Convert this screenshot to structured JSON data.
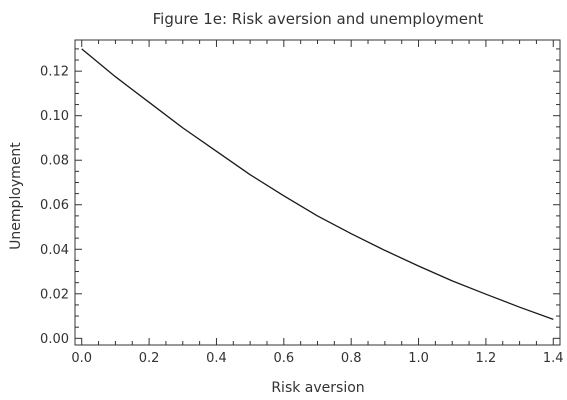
{
  "chart_data": {
    "type": "line",
    "title": "Figure 1e: Risk aversion and unemployment",
    "xlabel": "Risk aversion",
    "ylabel": "Unemployment",
    "xlim": [
      -0.02,
      1.42
    ],
    "ylim": [
      -0.003,
      0.134
    ],
    "x_ticks": [
      0.0,
      0.2,
      0.4,
      0.6,
      0.8,
      1.0,
      1.2,
      1.4
    ],
    "x_tick_labels": [
      "0.0",
      "0.2",
      "0.4",
      "0.6",
      "0.8",
      "1.0",
      "1.2",
      "1.4"
    ],
    "y_ticks": [
      0.0,
      0.02,
      0.04,
      0.06,
      0.08,
      0.1,
      0.12
    ],
    "y_tick_labels": [
      "0.00",
      "0.02",
      "0.04",
      "0.06",
      "0.08",
      "0.10",
      "0.12"
    ],
    "grid": false,
    "series": [
      {
        "color": "#1a1a1a",
        "x": [
          0.0,
          0.1,
          0.2,
          0.3,
          0.4,
          0.5,
          0.6,
          0.7,
          0.8,
          0.9,
          1.0,
          1.1,
          1.2,
          1.3,
          1.4
        ],
        "y": [
          0.13,
          0.1175,
          0.106,
          0.0945,
          0.084,
          0.0735,
          0.064,
          0.055,
          0.047,
          0.0395,
          0.0325,
          0.0258,
          0.0198,
          0.014,
          0.0085
        ]
      }
    ]
  }
}
